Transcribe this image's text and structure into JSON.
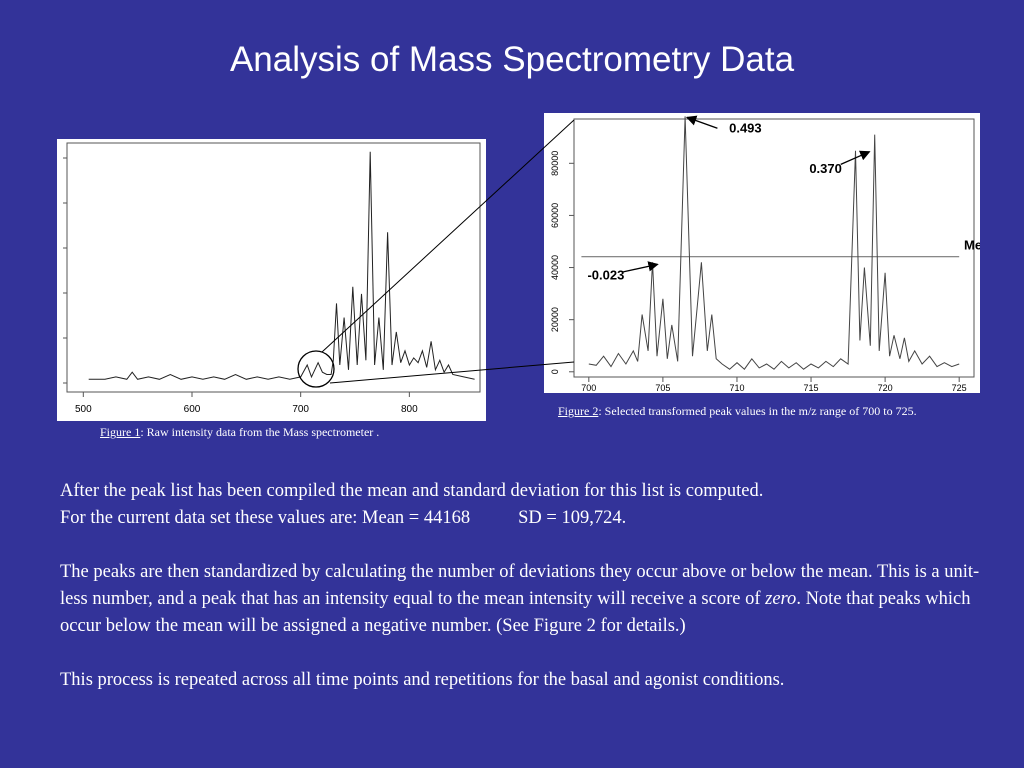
{
  "slide": {
    "title": "Analysis of Mass Spectrometry Data"
  },
  "figure1": {
    "caption_label": "Figure 1",
    "caption_text": ": Raw intensity data from the Mass spectrometer ."
  },
  "figure2": {
    "caption_label": "Figure 2",
    "caption_text": ": Selected transformed peak values in the m/z range of 700 to 725."
  },
  "body": {
    "p1_line1": "After the peak list has been compiled the mean and standard deviation for this list is computed.",
    "p1_line2_a": "For the current data set these values are:  Mean = 44168",
    "p1_line2_b": "SD = 109,724.",
    "p2_a": "The peaks are then standardized by calculating the number of deviations they occur above or below the mean.  This is a unit-less number, and a peak that has an intensity equal to the mean intensity will receive a score of ",
    "p2_em": "zero",
    "p2_b": ".  Note that peaks which occur below the mean will be assigned a negative number. (See Figure 2 for details.)",
    "p3": "This process is repeated across all time points and repetitions for the basal and agonist conditions."
  },
  "chart_data": [
    {
      "type": "line",
      "x_ticks": [
        500,
        600,
        700,
        800
      ],
      "xlim": [
        485,
        865
      ],
      "ylim": [
        0,
        100
      ],
      "series": [
        {
          "x": [
            505,
            520,
            530,
            540,
            545,
            550,
            560,
            570,
            580,
            590,
            600,
            610,
            620,
            630,
            640,
            650,
            660,
            670,
            680,
            690,
            700,
            706,
            710,
            716,
            720,
            724,
            728,
            730,
            733,
            736,
            740,
            744,
            748,
            752,
            756,
            760,
            764,
            768,
            772,
            776,
            780,
            784,
            788,
            792,
            796,
            800,
            804,
            808,
            812,
            816,
            820,
            824,
            828,
            832,
            836,
            840,
            850,
            860
          ],
          "y": [
            2,
            2,
            3,
            2,
            5,
            2,
            3,
            2,
            4,
            2,
            3,
            2,
            3,
            2,
            4,
            2,
            3,
            2,
            3,
            2,
            3,
            8,
            3,
            9,
            5,
            4,
            4,
            10,
            34,
            8,
            28,
            6,
            41,
            8,
            38,
            10,
            98,
            8,
            28,
            6,
            64,
            8,
            22,
            9,
            14,
            8,
            11,
            9,
            14,
            7,
            18,
            6,
            10,
            5,
            8,
            4,
            3,
            2
          ]
        }
      ]
    },
    {
      "type": "line",
      "xlabel": "",
      "ylabel": "",
      "x_ticks": [
        700,
        705,
        710,
        715,
        720,
        725
      ],
      "y_ticks": [
        0,
        20000,
        40000,
        60000,
        80000
      ],
      "xlim": [
        699,
        726
      ],
      "ylim": [
        -2000,
        97000
      ],
      "mean_line": {
        "value": 44168,
        "label": "Mean"
      },
      "annotations": [
        {
          "text": "0.493",
          "x": 706.5,
          "y": 98000
        },
        {
          "text": "0.370",
          "x": 718.8,
          "y": 84800
        },
        {
          "text": "-0.023",
          "x": 704.5,
          "y": 41600
        }
      ],
      "series": [
        {
          "x": [
            700,
            700.5,
            701,
            701.5,
            702,
            702.5,
            703,
            703.3,
            703.6,
            704,
            704.3,
            704.6,
            705,
            705.3,
            705.6,
            706,
            706.5,
            707,
            707.3,
            707.6,
            708,
            708.3,
            708.6,
            709,
            709.5,
            710,
            710.5,
            711,
            711.5,
            712,
            712.5,
            713,
            713.5,
            714,
            714.5,
            715,
            715.5,
            716,
            716.5,
            717,
            717.5,
            718,
            718.3,
            718.6,
            719,
            719.3,
            719.6,
            720,
            720.3,
            720.6,
            721,
            721.3,
            721.6,
            722,
            722.5,
            723,
            723.5,
            724,
            724.5,
            725
          ],
          "y": [
            3000,
            2500,
            6000,
            2000,
            7000,
            3000,
            8000,
            4000,
            22000,
            8000,
            42000,
            6000,
            28000,
            5000,
            18000,
            4000,
            98000,
            6000,
            24000,
            42000,
            8000,
            22000,
            5000,
            3000,
            1000,
            3500,
            1000,
            5000,
            1500,
            3000,
            1000,
            4000,
            1500,
            3500,
            1000,
            3000,
            1500,
            4000,
            2000,
            5000,
            3000,
            84800,
            12000,
            40000,
            10000,
            91000,
            8000,
            38000,
            6000,
            14000,
            5000,
            13000,
            4000,
            8000,
            3000,
            6000,
            2000,
            3500,
            2000,
            3000
          ]
        }
      ]
    }
  ]
}
